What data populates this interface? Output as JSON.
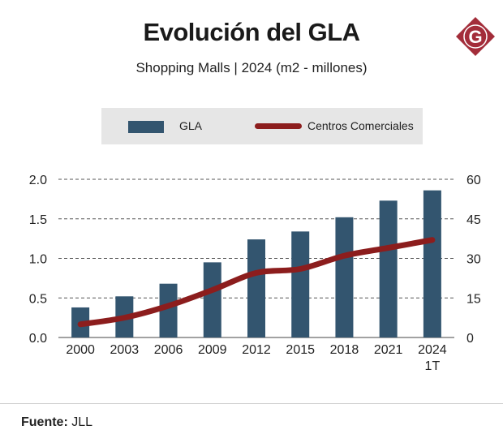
{
  "header": {
    "title": "Evolución del GLA",
    "subtitle": "Shopping Malls | 2024 (m2 - millones)",
    "logo_letter": "G",
    "logo_icon": "g-logo-icon"
  },
  "legend": {
    "bar_label": "GLA",
    "line_label": "Centros Comerciales"
  },
  "colors": {
    "bar": "#33556f",
    "line": "#8c1d1d",
    "logo": "#a32d3a",
    "grid": "#555555"
  },
  "footer": {
    "source_label": "Fuente:",
    "source_value": "JLL"
  },
  "chart_data": {
    "type": "bar",
    "title": "Evolución del GLA",
    "subtitle": "Shopping Malls | 2024 (m2 - millones)",
    "categories": [
      "2000",
      "2003",
      "2006",
      "2009",
      "2012",
      "2015",
      "2018",
      "2021",
      "2024"
    ],
    "category_sublabels": [
      "",
      "",
      "",
      "",
      "",
      "",
      "",
      "",
      "1T"
    ],
    "series": [
      {
        "name": "GLA",
        "type": "bar",
        "axis": "left",
        "values": [
          0.38,
          0.52,
          0.68,
          0.95,
          1.24,
          1.34,
          1.52,
          1.73,
          1.86
        ]
      },
      {
        "name": "Centros Comerciales",
        "type": "line",
        "axis": "right",
        "values": [
          5,
          7.5,
          12,
          18,
          24.5,
          26,
          31,
          34,
          37
        ]
      }
    ],
    "y_left": {
      "min": 0,
      "max": 2,
      "ticks": [
        "0.0",
        "0.5",
        "1.0",
        "1.5",
        "2.0"
      ]
    },
    "y_right": {
      "min": 0,
      "max": 60,
      "ticks": [
        "0",
        "15",
        "30",
        "45",
        "60"
      ]
    },
    "grid": "dashed",
    "legend_position": "top"
  }
}
